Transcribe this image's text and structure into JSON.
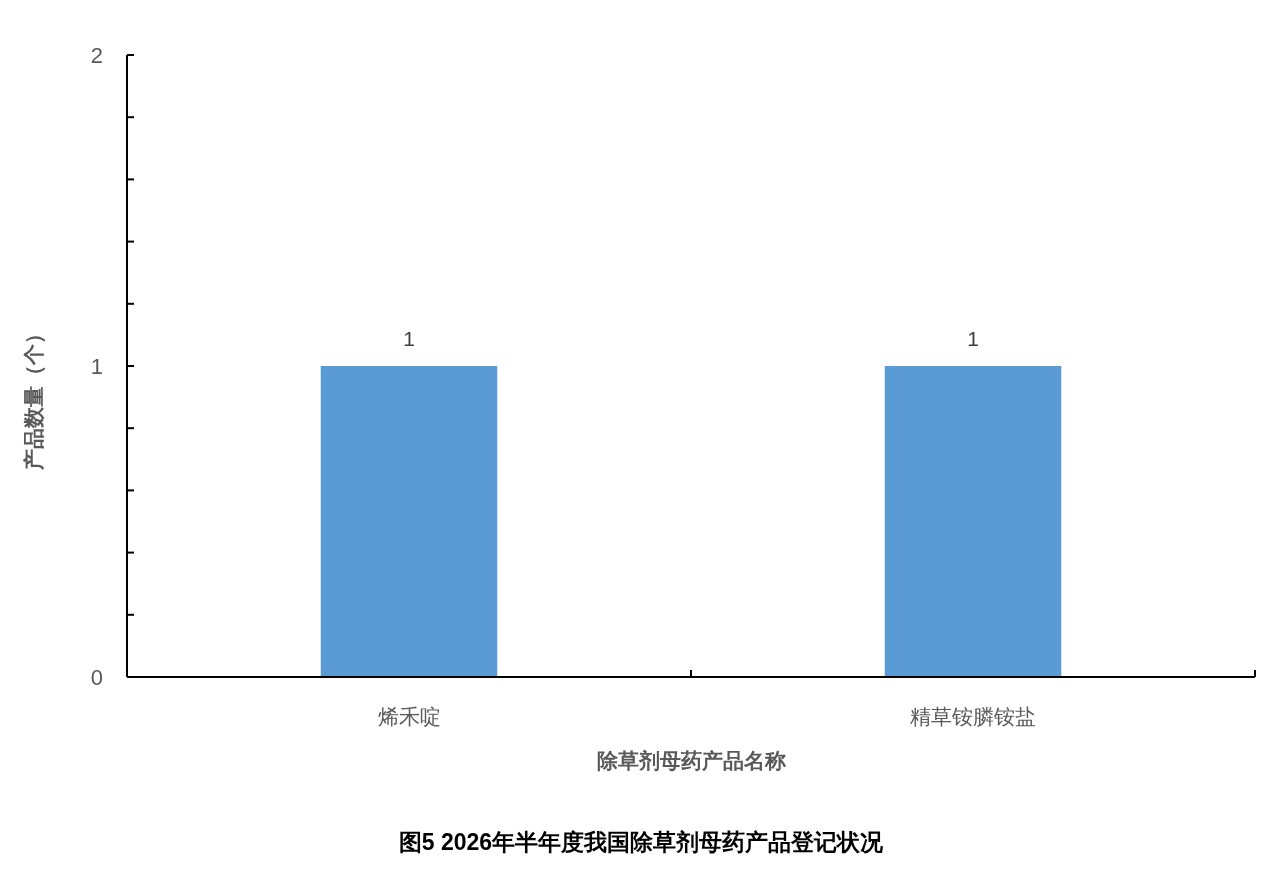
{
  "chart_data": {
    "type": "bar",
    "title": "图5 2026年半年度我国除草剂母药产品登记状况",
    "xlabel": "除草剂母药产品名称",
    "ylabel": "产品数量（个）",
    "categories": [
      "烯禾啶",
      "精草铵膦铵盐"
    ],
    "values": [
      1,
      1
    ],
    "color": "#5b9bd5",
    "ylim": [
      0,
      2
    ],
    "yticks": [
      0,
      {
        "value": 0.2,
        "label": null
      },
      {
        "value": 0.4,
        "label": null
      },
      {
        "value": 0.6,
        "label": null
      },
      {
        "value": 0.8,
        "label": null
      },
      1,
      {
        "value": 1.2,
        "label": null
      },
      {
        "value": 1.4,
        "label": null
      },
      {
        "value": 1.6,
        "label": null
      },
      {
        "value": 1.8,
        "label": null
      },
      2
    ],
    "data_labels": true
  }
}
